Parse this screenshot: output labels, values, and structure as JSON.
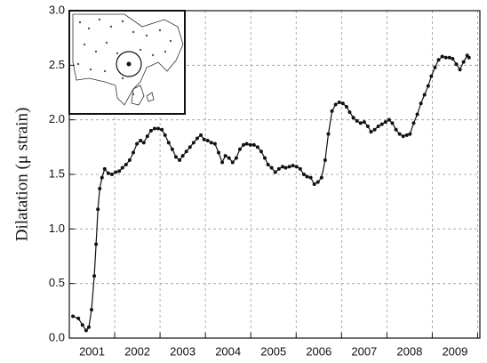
{
  "chart_data": {
    "type": "line",
    "y_label": "Dilatation (μ strain)",
    "xlim": [
      2001,
      2010.05
    ],
    "ylim": [
      0,
      3
    ],
    "yticks": [
      {
        "value": 0,
        "label": "0.0"
      },
      {
        "value": 0.5,
        "label": "0.5"
      },
      {
        "value": 1,
        "label": "1.0"
      },
      {
        "value": 1.5,
        "label": "1.5"
      },
      {
        "value": 2,
        "label": "2.0"
      },
      {
        "value": 2.5,
        "label": "2.5"
      },
      {
        "value": 3,
        "label": "3.0"
      }
    ],
    "xticks": [
      {
        "value": 2001.5,
        "label": "2001"
      },
      {
        "value": 2002.5,
        "label": "2002"
      },
      {
        "value": 2003.5,
        "label": "2003"
      },
      {
        "value": 2004.5,
        "label": "2004"
      },
      {
        "value": 2005.5,
        "label": "2005"
      },
      {
        "value": 2006.5,
        "label": "2006"
      },
      {
        "value": 2007.5,
        "label": "2007"
      },
      {
        "value": 2008.5,
        "label": "2008"
      },
      {
        "value": 2009.5,
        "label": "2009"
      }
    ],
    "x_gridlines": [
      2002,
      2003,
      2004,
      2005,
      2006,
      2007,
      2008,
      2009,
      2010
    ],
    "grid": true,
    "color": "#111111",
    "markers": true,
    "x": [
      2001.08,
      2001.2,
      2001.29,
      2001.37,
      2001.43,
      2001.49,
      2001.55,
      2001.59,
      2001.63,
      2001.67,
      2001.72,
      2001.78,
      2001.86,
      2001.94,
      2002.02,
      2002.1,
      2002.17,
      2002.25,
      2002.33,
      2002.41,
      2002.49,
      2002.57,
      2002.64,
      2002.72,
      2002.8,
      2002.88,
      2002.96,
      2003.04,
      2003.11,
      2003.19,
      2003.27,
      2003.35,
      2003.43,
      2003.5,
      2003.58,
      2003.66,
      2003.74,
      2003.82,
      2003.9,
      2003.97,
      2004.05,
      2004.13,
      2004.21,
      2004.29,
      2004.37,
      2004.44,
      2004.52,
      2004.6,
      2004.68,
      2004.76,
      2004.84,
      2004.91,
      2004.99,
      2005.07,
      2005.15,
      2005.23,
      2005.31,
      2005.38,
      2005.46,
      2005.54,
      2005.62,
      2005.7,
      2005.77,
      2005.85,
      2005.93,
      2006.01,
      2006.09,
      2006.17,
      2006.24,
      2006.32,
      2006.4,
      2006.48,
      2006.56,
      2006.64,
      2006.71,
      2006.79,
      2006.87,
      2006.95,
      2007.03,
      2007.11,
      2007.18,
      2007.26,
      2007.34,
      2007.42,
      2007.5,
      2007.58,
      2007.65,
      2007.73,
      2007.81,
      2007.89,
      2007.97,
      2008.05,
      2008.12,
      2008.2,
      2008.28,
      2008.36,
      2008.44,
      2008.51,
      2008.59,
      2008.67,
      2008.75,
      2008.83,
      2008.91,
      2008.98,
      2009.06,
      2009.14,
      2009.22,
      2009.3,
      2009.38,
      2009.45,
      2009.53,
      2009.61,
      2009.69,
      2009.77,
      2009.81
    ],
    "values": [
      0.2,
      0.18,
      0.12,
      0.07,
      0.1,
      0.26,
      0.57,
      0.86,
      1.18,
      1.37,
      1.47,
      1.55,
      1.51,
      1.5,
      1.52,
      1.53,
      1.56,
      1.59,
      1.63,
      1.7,
      1.78,
      1.81,
      1.79,
      1.85,
      1.9,
      1.92,
      1.92,
      1.91,
      1.86,
      1.79,
      1.73,
      1.66,
      1.63,
      1.67,
      1.71,
      1.75,
      1.79,
      1.83,
      1.86,
      1.82,
      1.81,
      1.79,
      1.78,
      1.7,
      1.61,
      1.67,
      1.65,
      1.61,
      1.65,
      1.73,
      1.77,
      1.78,
      1.77,
      1.77,
      1.75,
      1.71,
      1.65,
      1.59,
      1.56,
      1.52,
      1.55,
      1.57,
      1.56,
      1.57,
      1.58,
      1.57,
      1.55,
      1.5,
      1.48,
      1.47,
      1.41,
      1.43,
      1.47,
      1.63,
      1.87,
      2.08,
      2.14,
      2.16,
      2.15,
      2.12,
      2.07,
      2.02,
      1.99,
      1.97,
      1.98,
      1.94,
      1.89,
      1.91,
      1.94,
      1.96,
      1.98,
      2.0,
      1.97,
      1.91,
      1.87,
      1.85,
      1.86,
      1.87,
      1.97,
      2.05,
      2.15,
      2.23,
      2.31,
      2.4,
      2.48,
      2.55,
      2.58,
      2.57,
      2.57,
      2.56,
      2.51,
      2.46,
      2.53,
      2.59,
      2.57
    ]
  }
}
